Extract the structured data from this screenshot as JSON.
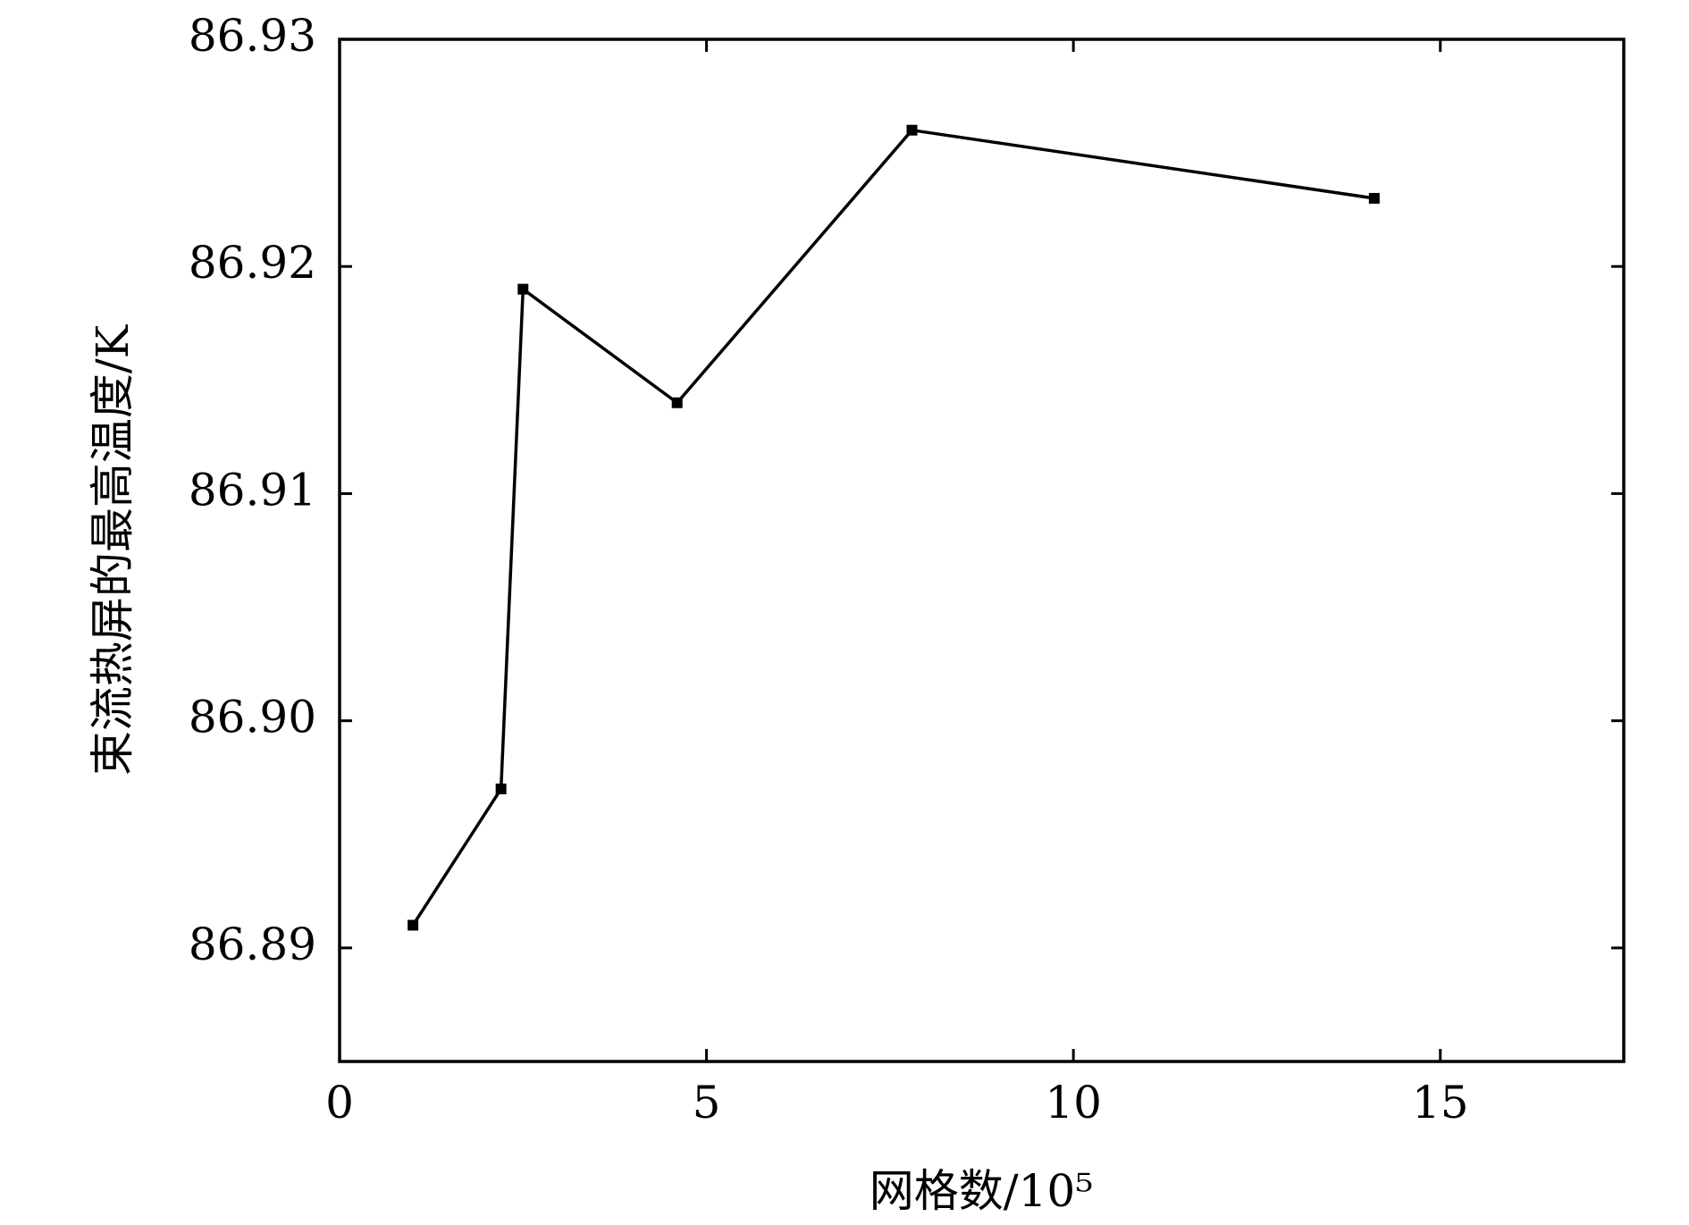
{
  "chart_data": {
    "type": "line",
    "x_label": "网格数/10⁵",
    "y_label": "束流热屏的最高温度/K",
    "x": [
      1.0,
      2.2,
      2.5,
      4.6,
      7.8,
      14.1
    ],
    "series": [
      {
        "color": "#000000",
        "values": [
          86.891,
          86.897,
          86.919,
          86.914,
          86.926,
          86.923
        ]
      }
    ],
    "xlim": [
      0,
      17.5
    ],
    "ylim": [
      86.885,
      86.93
    ],
    "xticks": [
      0,
      5,
      10,
      15
    ],
    "yticks": [
      86.89,
      {
        "value": 86.9,
        "label": "86.90"
      },
      86.91,
      86.92,
      86.93
    ],
    "grid": false
  }
}
